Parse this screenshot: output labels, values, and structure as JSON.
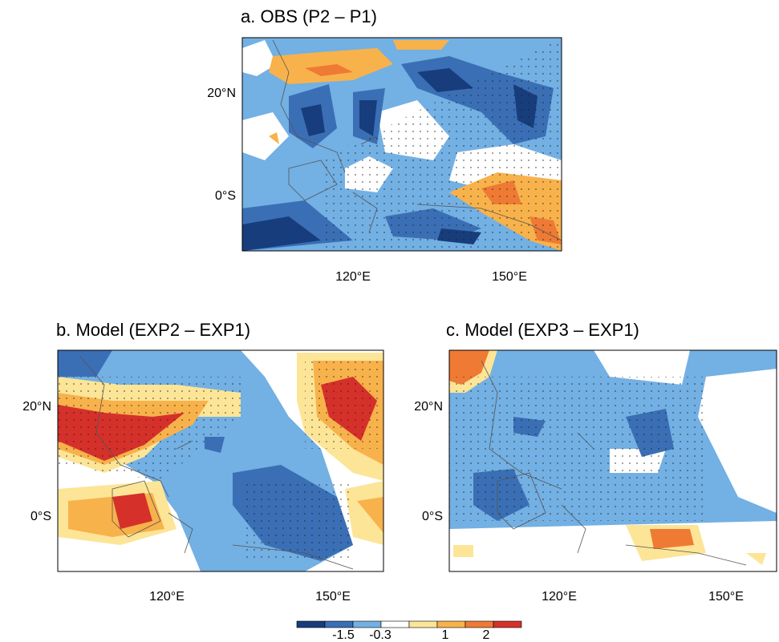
{
  "panels": [
    {
      "title": "a. OBS (P2 – P1)",
      "ylabels": [
        "20°N",
        "0°S"
      ],
      "xlabels": [
        "120°E",
        "150°E"
      ]
    },
    {
      "title": "b. Model (EXP2 – EXP1)",
      "ylabels": [
        "20°N",
        "0°S"
      ],
      "xlabels": [
        "120°E",
        "150°E"
      ]
    },
    {
      "title": "c. Model (EXP3 – EXP1)",
      "ylabels": [
        "20°N",
        "0°S"
      ],
      "xlabels": [
        "120°E",
        "150°E"
      ]
    }
  ],
  "colorbar": {
    "colors": [
      "#173d7c",
      "#3a6fb5",
      "#73b0e3",
      "#ffffff",
      "#fde597",
      "#f8b24b",
      "#ef7a34",
      "#d6302a"
    ],
    "labels": [
      "-1.5",
      "-0.3",
      "1",
      "2"
    ]
  }
}
